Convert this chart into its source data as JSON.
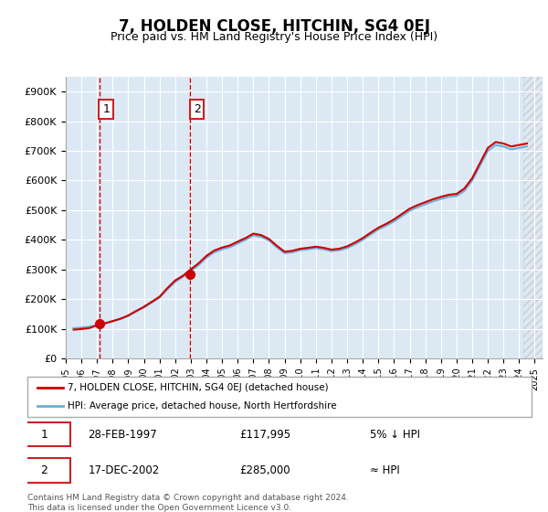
{
  "title": "7, HOLDEN CLOSE, HITCHIN, SG4 0EJ",
  "subtitle": "Price paid vs. HM Land Registry's House Price Index (HPI)",
  "bg_color": "#dce9f5",
  "plot_bg_color": "#dce9f5",
  "hpi_color": "#6dafd6",
  "price_color": "#cc0000",
  "sale1_date": "28-FEB-1997",
  "sale1_price": 117995,
  "sale1_label": "1",
  "sale2_date": "17-DEC-2002",
  "sale2_price": 285000,
  "sale2_label": "2",
  "sale1_year": 1997.15,
  "sale2_year": 2002.96,
  "legend_line1": "7, HOLDEN CLOSE, HITCHIN, SG4 0EJ (detached house)",
  "legend_line2": "HPI: Average price, detached house, North Hertfordshire",
  "note1": "1   28-FEB-1997          £117,995          5% ↓ HPI",
  "note2": "2   17-DEC-2002          £285,000          ≈ HPI",
  "footer": "Contains HM Land Registry data © Crown copyright and database right 2024.\nThis data is licensed under the Open Government Licence v3.0.",
  "ylabel_ticks": [
    "£0",
    "£100K",
    "£200K",
    "£300K",
    "£400K",
    "£500K",
    "£600K",
    "£700K",
    "£800K",
    "£900K"
  ],
  "ytick_vals": [
    0,
    100000,
    200000,
    300000,
    400000,
    500000,
    600000,
    700000,
    800000,
    900000
  ],
  "xmin": 1995,
  "xmax": 2025.5,
  "ymin": 0,
  "ymax": 950000
}
